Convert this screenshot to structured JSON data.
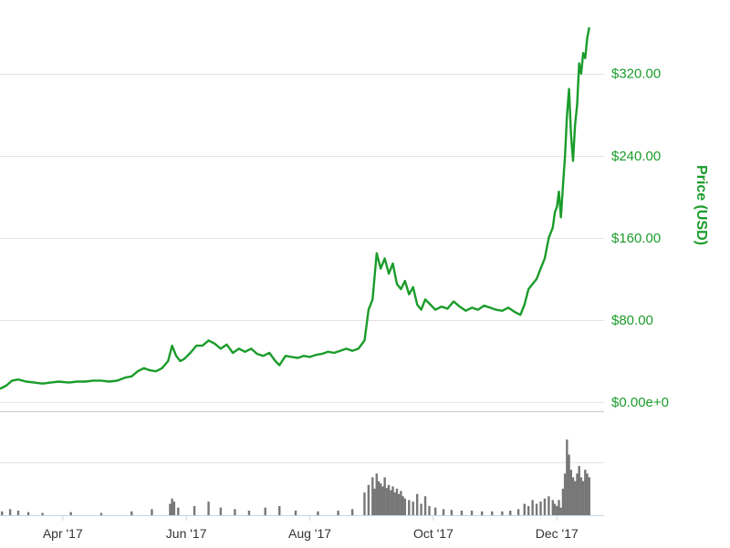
{
  "chart_data": {
    "type": "line",
    "ylabel": "Price (USD)",
    "y_ticks": [
      {
        "value": 0,
        "label": "$0.00e+0"
      },
      {
        "value": 80,
        "label": "$80.00"
      },
      {
        "value": 160,
        "label": "$160.00"
      },
      {
        "value": 240,
        "label": "$240.00"
      },
      {
        "value": 320,
        "label": "$320.00"
      }
    ],
    "x_ticks": [
      {
        "date": "2017-04-01",
        "label": "Apr '17"
      },
      {
        "date": "2017-06-01",
        "label": "Jun '17"
      },
      {
        "date": "2017-08-01",
        "label": "Aug '17"
      },
      {
        "date": "2017-10-01",
        "label": "Oct '17"
      },
      {
        "date": "2017-12-01",
        "label": "Dec '17"
      }
    ],
    "xlim": [
      "2017-03-01",
      "2017-12-18"
    ],
    "ylim": [
      0,
      365
    ],
    "grid": true,
    "colors": {
      "line": "#1a9c2a",
      "axis_text": "#1a9c2a",
      "volume": "#777777",
      "grid": "#e4e4e4"
    },
    "series": [
      {
        "values": [
          [
            "2017-03-01",
            13
          ],
          [
            "2017-03-04",
            16
          ],
          [
            "2017-03-07",
            21
          ],
          [
            "2017-03-10",
            22
          ],
          [
            "2017-03-14",
            20
          ],
          [
            "2017-03-18",
            19
          ],
          [
            "2017-03-22",
            18
          ],
          [
            "2017-03-26",
            19
          ],
          [
            "2017-03-30",
            20
          ],
          [
            "2017-04-04",
            19
          ],
          [
            "2017-04-08",
            20
          ],
          [
            "2017-04-12",
            20
          ],
          [
            "2017-04-16",
            21
          ],
          [
            "2017-04-20",
            21
          ],
          [
            "2017-04-24",
            20
          ],
          [
            "2017-04-28",
            21
          ],
          [
            "2017-05-02",
            24
          ],
          [
            "2017-05-05",
            25
          ],
          [
            "2017-05-08",
            30
          ],
          [
            "2017-05-11",
            33
          ],
          [
            "2017-05-14",
            31
          ],
          [
            "2017-05-17",
            30
          ],
          [
            "2017-05-20",
            33
          ],
          [
            "2017-05-23",
            40
          ],
          [
            "2017-05-25",
            55
          ],
          [
            "2017-05-27",
            45
          ],
          [
            "2017-05-29",
            40
          ],
          [
            "2017-05-31",
            42
          ],
          [
            "2017-06-03",
            48
          ],
          [
            "2017-06-06",
            55
          ],
          [
            "2017-06-09",
            55
          ],
          [
            "2017-06-12",
            60
          ],
          [
            "2017-06-15",
            57
          ],
          [
            "2017-06-18",
            52
          ],
          [
            "2017-06-21",
            56
          ],
          [
            "2017-06-24",
            48
          ],
          [
            "2017-06-27",
            52
          ],
          [
            "2017-06-30",
            49
          ],
          [
            "2017-07-03",
            52
          ],
          [
            "2017-07-06",
            47
          ],
          [
            "2017-07-09",
            45
          ],
          [
            "2017-07-12",
            48
          ],
          [
            "2017-07-15",
            40
          ],
          [
            "2017-07-17",
            36
          ],
          [
            "2017-07-20",
            45
          ],
          [
            "2017-07-23",
            44
          ],
          [
            "2017-07-26",
            43
          ],
          [
            "2017-07-29",
            45
          ],
          [
            "2017-08-01",
            44
          ],
          [
            "2017-08-04",
            46
          ],
          [
            "2017-08-07",
            47
          ],
          [
            "2017-08-10",
            49
          ],
          [
            "2017-08-13",
            48
          ],
          [
            "2017-08-16",
            50
          ],
          [
            "2017-08-19",
            52
          ],
          [
            "2017-08-22",
            50
          ],
          [
            "2017-08-25",
            52
          ],
          [
            "2017-08-28",
            60
          ],
          [
            "2017-08-30",
            90
          ],
          [
            "2017-09-01",
            100
          ],
          [
            "2017-09-03",
            145
          ],
          [
            "2017-09-05",
            130
          ],
          [
            "2017-09-07",
            140
          ],
          [
            "2017-09-09",
            125
          ],
          [
            "2017-09-11",
            135
          ],
          [
            "2017-09-13",
            115
          ],
          [
            "2017-09-15",
            110
          ],
          [
            "2017-09-17",
            118
          ],
          [
            "2017-09-19",
            105
          ],
          [
            "2017-09-21",
            112
          ],
          [
            "2017-09-23",
            95
          ],
          [
            "2017-09-25",
            90
          ],
          [
            "2017-09-27",
            100
          ],
          [
            "2017-09-29",
            96
          ],
          [
            "2017-10-02",
            90
          ],
          [
            "2017-10-05",
            93
          ],
          [
            "2017-10-08",
            91
          ],
          [
            "2017-10-11",
            98
          ],
          [
            "2017-10-14",
            93
          ],
          [
            "2017-10-17",
            89
          ],
          [
            "2017-10-20",
            92
          ],
          [
            "2017-10-23",
            90
          ],
          [
            "2017-10-26",
            94
          ],
          [
            "2017-10-29",
            92
          ],
          [
            "2017-11-01",
            90
          ],
          [
            "2017-11-04",
            89
          ],
          [
            "2017-11-07",
            92
          ],
          [
            "2017-11-10",
            88
          ],
          [
            "2017-11-13",
            85
          ],
          [
            "2017-11-15",
            95
          ],
          [
            "2017-11-17",
            110
          ],
          [
            "2017-11-19",
            115
          ],
          [
            "2017-11-21",
            120
          ],
          [
            "2017-11-23",
            130
          ],
          [
            "2017-11-25",
            140
          ],
          [
            "2017-11-27",
            160
          ],
          [
            "2017-11-29",
            170
          ],
          [
            "2017-11-30",
            185
          ],
          [
            "2017-12-01",
            190
          ],
          [
            "2017-12-02",
            205
          ],
          [
            "2017-12-03",
            180
          ],
          [
            "2017-12-04",
            210
          ],
          [
            "2017-12-05",
            240
          ],
          [
            "2017-12-06",
            280
          ],
          [
            "2017-12-07",
            305
          ],
          [
            "2017-12-08",
            260
          ],
          [
            "2017-12-09",
            235
          ],
          [
            "2017-12-10",
            270
          ],
          [
            "2017-12-11",
            290
          ],
          [
            "2017-12-12",
            330
          ],
          [
            "2017-12-13",
            320
          ],
          [
            "2017-12-14",
            340
          ],
          [
            "2017-12-15",
            335
          ],
          [
            "2017-12-16",
            355
          ],
          [
            "2017-12-17",
            365
          ]
        ]
      }
    ],
    "volume": [
      [
        "2017-03-02",
        0.05
      ],
      [
        "2017-03-06",
        0.08
      ],
      [
        "2017-03-10",
        0.06
      ],
      [
        "2017-03-15",
        0.04
      ],
      [
        "2017-03-22",
        0.03
      ],
      [
        "2017-04-05",
        0.04
      ],
      [
        "2017-04-20",
        0.03
      ],
      [
        "2017-05-05",
        0.05
      ],
      [
        "2017-05-15",
        0.08
      ],
      [
        "2017-05-24",
        0.15
      ],
      [
        "2017-05-25",
        0.22
      ],
      [
        "2017-05-26",
        0.18
      ],
      [
        "2017-05-28",
        0.1
      ],
      [
        "2017-06-05",
        0.12
      ],
      [
        "2017-06-12",
        0.18
      ],
      [
        "2017-06-18",
        0.1
      ],
      [
        "2017-06-25",
        0.08
      ],
      [
        "2017-07-02",
        0.06
      ],
      [
        "2017-07-10",
        0.1
      ],
      [
        "2017-07-17",
        0.12
      ],
      [
        "2017-07-25",
        0.06
      ],
      [
        "2017-08-05",
        0.05
      ],
      [
        "2017-08-15",
        0.06
      ],
      [
        "2017-08-22",
        0.08
      ],
      [
        "2017-08-28",
        0.3
      ],
      [
        "2017-08-30",
        0.4
      ],
      [
        "2017-09-01",
        0.5
      ],
      [
        "2017-09-02",
        0.35
      ],
      [
        "2017-09-03",
        0.55
      ],
      [
        "2017-09-04",
        0.45
      ],
      [
        "2017-09-05",
        0.42
      ],
      [
        "2017-09-06",
        0.38
      ],
      [
        "2017-09-07",
        0.5
      ],
      [
        "2017-09-08",
        0.36
      ],
      [
        "2017-09-09",
        0.4
      ],
      [
        "2017-09-10",
        0.33
      ],
      [
        "2017-09-11",
        0.38
      ],
      [
        "2017-09-12",
        0.3
      ],
      [
        "2017-09-13",
        0.35
      ],
      [
        "2017-09-14",
        0.28
      ],
      [
        "2017-09-15",
        0.32
      ],
      [
        "2017-09-16",
        0.25
      ],
      [
        "2017-09-17",
        0.22
      ],
      [
        "2017-09-19",
        0.2
      ],
      [
        "2017-09-21",
        0.18
      ],
      [
        "2017-09-23",
        0.28
      ],
      [
        "2017-09-25",
        0.15
      ],
      [
        "2017-09-27",
        0.25
      ],
      [
        "2017-09-29",
        0.12
      ],
      [
        "2017-10-02",
        0.1
      ],
      [
        "2017-10-06",
        0.08
      ],
      [
        "2017-10-10",
        0.07
      ],
      [
        "2017-10-15",
        0.06
      ],
      [
        "2017-10-20",
        0.06
      ],
      [
        "2017-10-25",
        0.05
      ],
      [
        "2017-10-30",
        0.05
      ],
      [
        "2017-11-04",
        0.05
      ],
      [
        "2017-11-08",
        0.06
      ],
      [
        "2017-11-12",
        0.08
      ],
      [
        "2017-11-15",
        0.15
      ],
      [
        "2017-11-17",
        0.12
      ],
      [
        "2017-11-19",
        0.2
      ],
      [
        "2017-11-21",
        0.15
      ],
      [
        "2017-11-23",
        0.18
      ],
      [
        "2017-11-25",
        0.22
      ],
      [
        "2017-11-27",
        0.25
      ],
      [
        "2017-11-29",
        0.2
      ],
      [
        "2017-11-30",
        0.15
      ],
      [
        "2017-12-01",
        0.12
      ],
      [
        "2017-12-02",
        0.2
      ],
      [
        "2017-12-03",
        0.1
      ],
      [
        "2017-12-04",
        0.35
      ],
      [
        "2017-12-05",
        0.55
      ],
      [
        "2017-12-06",
        1.0
      ],
      [
        "2017-12-07",
        0.8
      ],
      [
        "2017-12-08",
        0.6
      ],
      [
        "2017-12-09",
        0.5
      ],
      [
        "2017-12-10",
        0.45
      ],
      [
        "2017-12-11",
        0.55
      ],
      [
        "2017-12-12",
        0.65
      ],
      [
        "2017-12-13",
        0.5
      ],
      [
        "2017-12-14",
        0.45
      ],
      [
        "2017-12-15",
        0.6
      ],
      [
        "2017-12-16",
        0.55
      ],
      [
        "2017-12-17",
        0.5
      ]
    ]
  }
}
